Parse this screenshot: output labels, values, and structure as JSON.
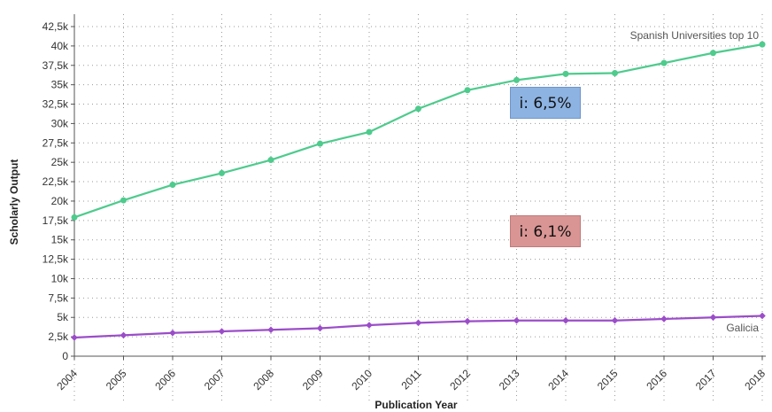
{
  "chart_data": {
    "type": "line",
    "xlabel": "Publication Year",
    "ylabel": "Scholarly Output",
    "ylim": [
      0,
      42500
    ],
    "y_ticks": [
      "0",
      "2,5k",
      "5k",
      "7,5k",
      "10k",
      "12,5k",
      "15k",
      "17,5k",
      "20k",
      "22,5k",
      "25k",
      "27,5k",
      "30k",
      "32,5k",
      "35k",
      "37,5k",
      "40k",
      "42,5k"
    ],
    "grid": "dotted",
    "x": [
      "2004",
      "2005",
      "2006",
      "2007",
      "2008",
      "2009",
      "2010",
      "2011",
      "2012",
      "2013",
      "2014",
      "2015",
      "2016",
      "2017",
      "2018"
    ],
    "series": [
      {
        "name": "Spanish Universities top 10",
        "color": "#4ecb8d",
        "values": [
          17900,
          20100,
          22100,
          23600,
          25300,
          27400,
          28900,
          31900,
          34300,
          35600,
          36400,
          36500,
          37800,
          39100,
          40200
        ]
      },
      {
        "name": "Galicia",
        "color": "#9b4dc9",
        "values": [
          2400,
          2700,
          3000,
          3200,
          3400,
          3600,
          4000,
          4300,
          4500,
          4600,
          4600,
          4600,
          4800,
          5000,
          5200
        ]
      }
    ],
    "annotations": [
      {
        "text": "i: 6,5%",
        "color": "#8db3e2"
      },
      {
        "text": "i: 6,1%",
        "color": "#d99594"
      }
    ]
  }
}
